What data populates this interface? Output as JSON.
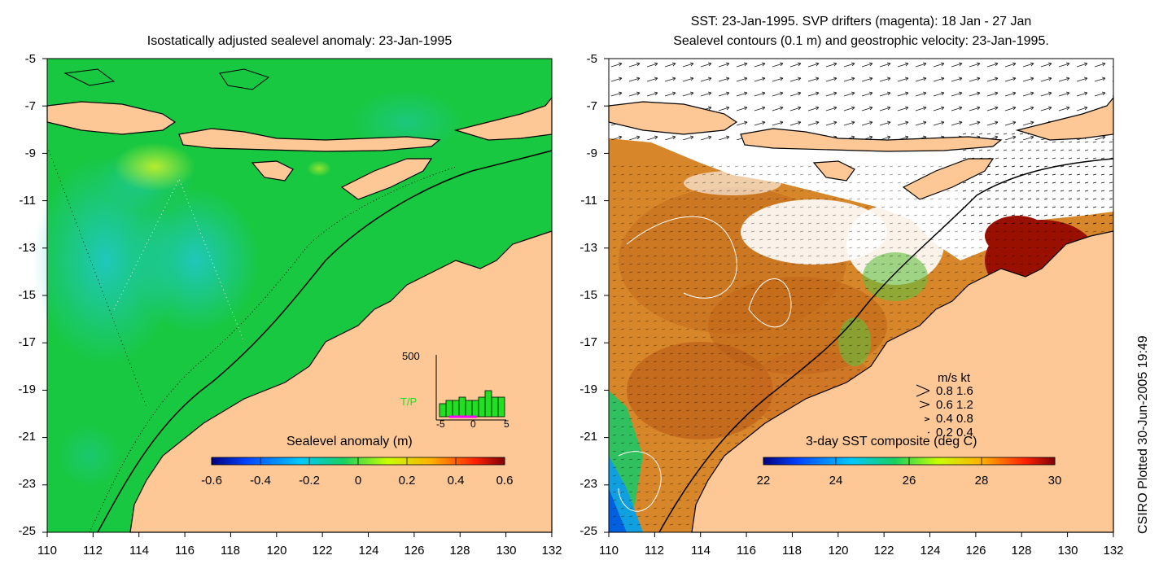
{
  "left_panel": {
    "title": "Isostatically adjusted sealevel anomaly: 23-Jan-1995",
    "colorbar": {
      "title": "Sealevel anomaly (m)",
      "ticks": [
        "-0.6",
        "-0.4",
        "-0.2",
        "0",
        "0.2",
        "0.4",
        "0.6"
      ],
      "colors": [
        "#00007f",
        "#0044ff",
        "#00c8ff",
        "#18d060",
        "#c8ff00",
        "#ffb000",
        "#ff2000",
        "#7f0000"
      ]
    },
    "inset": {
      "ymax_label": "500",
      "series_label": "T/P",
      "x_ticks": [
        "-5",
        "0",
        "5"
      ],
      "bars": [
        0.2,
        0.25,
        0.25,
        0.3,
        0.25,
        0.25,
        0.3,
        0.4,
        0.3,
        0.3
      ]
    }
  },
  "right_panel": {
    "title_line1": "SST: 23-Jan-1995. SVP drifters (magenta): 18 Jan - 27 Jan",
    "title_line2": "Sealevel contours (0.1 m) and geostrophic velocity: 23-Jan-1995.",
    "colorbar": {
      "title": "3-day SST composite (deg C)",
      "ticks": [
        "22",
        "24",
        "26",
        "28",
        "30"
      ],
      "colors": [
        "#00007f",
        "#0044ff",
        "#00c8ff",
        "#18d060",
        "#c8ff00",
        "#ffb000",
        "#ff2000",
        "#7f0000"
      ]
    },
    "velocity_legend": {
      "header": "m/s  kt",
      "rows": [
        "0.8  1.6",
        "0.6  1.2",
        "0.4  0.8",
        "0.2  0.4"
      ]
    }
  },
  "axes": {
    "y_ticks": [
      "-5",
      "-7",
      "-9",
      "-11",
      "-13",
      "-15",
      "-17",
      "-19",
      "-21",
      "-23",
      "-25"
    ],
    "x_ticks": [
      "110",
      "112",
      "114",
      "116",
      "118",
      "120",
      "122",
      "124",
      "126",
      "128",
      "130",
      "132"
    ]
  },
  "credit": "CSIRO Plotted 30-Jun-2005 19:49",
  "colors": {
    "land": "#fdc896",
    "ocean_anomaly": "#18d030",
    "ocean_low": "#40c8a8",
    "sst_warm": "#d88a28",
    "sst_hot": "#a01800"
  }
}
